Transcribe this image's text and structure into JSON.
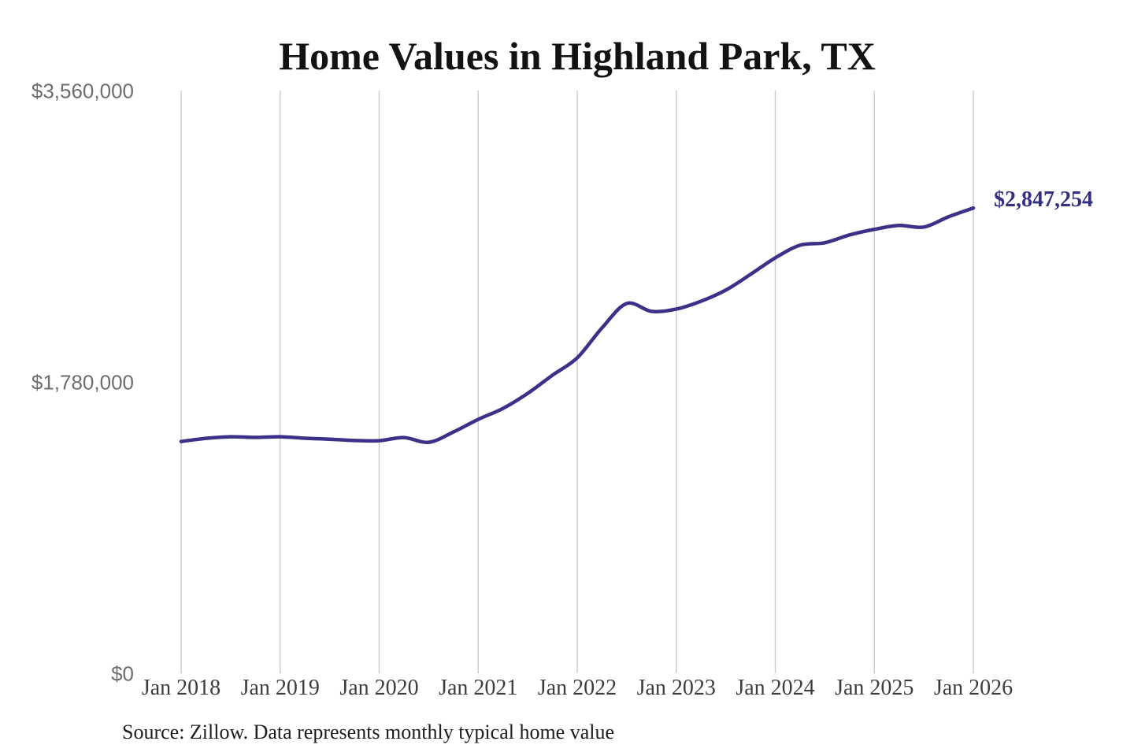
{
  "title": "Home Values in Highland Park, TX",
  "source_note": "Source: Zillow. Data represents monthly typical home value",
  "end_label": "$2,847,254",
  "colors": {
    "line": "#3b3189",
    "end_label": "#333082",
    "grid": "#cdcdcd",
    "title": "#121212",
    "y_tick": "#6e6e6e",
    "x_tick": "#3d3d3d",
    "source": "#1c1c1c",
    "background": "#ffffff"
  },
  "chart_data": {
    "type": "line",
    "title": "Home Values in Highland Park, TX",
    "series_name": "Typical home value ($)",
    "xlabel": "",
    "ylabel": "",
    "ylim": [
      0,
      3560000
    ],
    "grid": "vertical-only",
    "legend": "none",
    "y_ticks": [
      {
        "value": 0,
        "label": "$0"
      },
      {
        "value": 1780000,
        "label": "$1,780,000"
      },
      {
        "value": 3560000,
        "label": "$3,560,000"
      }
    ],
    "x_tick_labels": [
      "Jan 2018",
      "Jan 2019",
      "Jan 2020",
      "Jan 2021",
      "Jan 2022",
      "Jan 2023",
      "Jan 2024",
      "Jan 2025",
      "Jan 2026"
    ],
    "final_value": 2847254,
    "points": [
      {
        "date": "2018-01",
        "value": 1421000
      },
      {
        "date": "2018-04",
        "value": 1440000
      },
      {
        "date": "2018-07",
        "value": 1450000
      },
      {
        "date": "2018-10",
        "value": 1446000
      },
      {
        "date": "2019-01",
        "value": 1450000
      },
      {
        "date": "2019-04",
        "value": 1441000
      },
      {
        "date": "2019-07",
        "value": 1435000
      },
      {
        "date": "2019-10",
        "value": 1427000
      },
      {
        "date": "2020-01",
        "value": 1426000
      },
      {
        "date": "2020-04",
        "value": 1445000
      },
      {
        "date": "2020-07",
        "value": 1416000
      },
      {
        "date": "2020-10",
        "value": 1479000
      },
      {
        "date": "2021-01",
        "value": 1556000
      },
      {
        "date": "2021-04",
        "value": 1623000
      },
      {
        "date": "2021-07",
        "value": 1715000
      },
      {
        "date": "2021-10",
        "value": 1826000
      },
      {
        "date": "2022-01",
        "value": 1932000
      },
      {
        "date": "2022-04",
        "value": 2115000
      },
      {
        "date": "2022-07",
        "value": 2264000
      },
      {
        "date": "2022-10",
        "value": 2216000
      },
      {
        "date": "2023-01",
        "value": 2230000
      },
      {
        "date": "2023-04",
        "value": 2278000
      },
      {
        "date": "2023-07",
        "value": 2346000
      },
      {
        "date": "2023-10",
        "value": 2442000
      },
      {
        "date": "2024-01",
        "value": 2543000
      },
      {
        "date": "2024-04",
        "value": 2620000
      },
      {
        "date": "2024-07",
        "value": 2635000
      },
      {
        "date": "2024-10",
        "value": 2683000
      },
      {
        "date": "2025-01",
        "value": 2717000
      },
      {
        "date": "2025-04",
        "value": 2741000
      },
      {
        "date": "2025-07",
        "value": 2731000
      },
      {
        "date": "2025-10",
        "value": 2794000
      },
      {
        "date": "2026-01",
        "value": 2847254
      }
    ]
  }
}
